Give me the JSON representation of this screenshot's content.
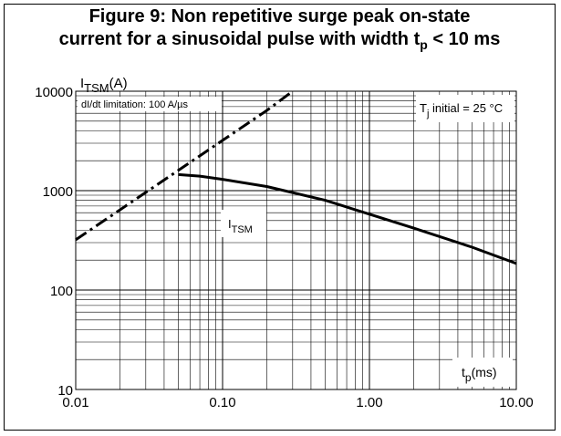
{
  "title_line1": "Figure 9: Non repetitive surge peak on-state",
  "title_line2_main": "current for a sinusoidal pulse with width t",
  "title_line2_sub": "p",
  "title_line2_end": " < 10 ms",
  "chart_data": {
    "type": "line",
    "x_scale": "log",
    "y_scale": "log",
    "xlim": [
      0.01,
      10
    ],
    "ylim": [
      10,
      10000
    ],
    "grid": true,
    "x_ticks": [
      {
        "value": 0.01,
        "label": "0.01"
      },
      {
        "value": 0.1,
        "label": "0.10"
      },
      {
        "value": 1,
        "label": "1.00"
      },
      {
        "value": 10,
        "label": "10.00"
      }
    ],
    "y_ticks": [
      {
        "value": 10,
        "label": "10"
      },
      {
        "value": 100,
        "label": "100"
      },
      {
        "value": 1000,
        "label": "1000"
      },
      {
        "value": 10000,
        "label": "10000"
      }
    ],
    "ylabel": {
      "main": "I",
      "sub": "TSM",
      "unit": "(A)"
    },
    "xlabel": {
      "main": "t",
      "sub": "p",
      "unit": "(ms)"
    },
    "series": [
      {
        "name": "I_TSM",
        "label_main": "I",
        "label_sub": "TSM",
        "style": "solid",
        "x": [
          0.05,
          0.07,
          0.1,
          0.2,
          0.5,
          1,
          2,
          5,
          10
        ],
        "y": [
          1450,
          1400,
          1300,
          1100,
          800,
          580,
          420,
          270,
          185
        ]
      },
      {
        "name": "dI/dt limitation",
        "style": "dash-dot",
        "x": [
          0.01,
          0.05,
          0.1,
          0.2,
          0.3
        ],
        "y": [
          320,
          1600,
          3200,
          6400,
          10000
        ]
      }
    ],
    "annotations": [
      {
        "id": "didt",
        "text": "dI/dt limitation: 100 A/µs"
      },
      {
        "id": "tj",
        "main": "T",
        "sub": "j",
        "rest": " initial = 25 °C"
      }
    ]
  }
}
